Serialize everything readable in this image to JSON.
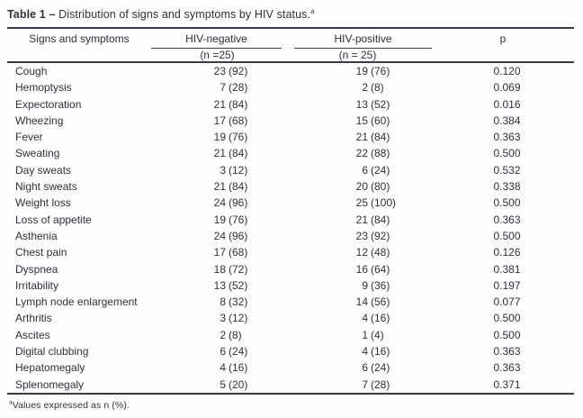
{
  "title": {
    "prefix": "Table 1",
    "separator": "–",
    "text": "Distribution of signs and symptoms by HIV status.",
    "footnote_mark": "a"
  },
  "table": {
    "header": {
      "signs": "Signs and symptoms",
      "negative": {
        "label": "HIV-negative",
        "sub": "(n =25)"
      },
      "positive": {
        "label": "HIV-positive",
        "sub": "(n = 25)"
      },
      "p": "p"
    },
    "rows": [
      {
        "label": "Cough",
        "neg_n": "23",
        "neg_pct": "(92)",
        "pos_n": "19",
        "pos_pct": "(76)",
        "p": "0.120"
      },
      {
        "label": "Hemoptysis",
        "neg_n": "7",
        "neg_pct": "(28)",
        "pos_n": "2",
        "pos_pct": "(8)",
        "p": "0.069"
      },
      {
        "label": "Expectoration",
        "neg_n": "21",
        "neg_pct": "(84)",
        "pos_n": "13",
        "pos_pct": "(52)",
        "p": "0.016"
      },
      {
        "label": "Wheezing",
        "neg_n": "17",
        "neg_pct": "(68)",
        "pos_n": "15",
        "pos_pct": "(60)",
        "p": "0.384"
      },
      {
        "label": "Fever",
        "neg_n": "19",
        "neg_pct": "(76)",
        "pos_n": "21",
        "pos_pct": "(84)",
        "p": "0.363"
      },
      {
        "label": "Sweating",
        "neg_n": "21",
        "neg_pct": "(84)",
        "pos_n": "22",
        "pos_pct": "(88)",
        "p": "0.500"
      },
      {
        "label": "Day sweats",
        "neg_n": "3",
        "neg_pct": "(12)",
        "pos_n": "6",
        "pos_pct": "(24)",
        "p": "0.532"
      },
      {
        "label": "Night sweats",
        "neg_n": "21",
        "neg_pct": "(84)",
        "pos_n": "20",
        "pos_pct": "(80)",
        "p": "0.338"
      },
      {
        "label": "Weight loss",
        "neg_n": "24",
        "neg_pct": "(96)",
        "pos_n": "25",
        "pos_pct": "(100)",
        "p": "0.500"
      },
      {
        "label": "Loss of appetite",
        "neg_n": "19",
        "neg_pct": "(76)",
        "pos_n": "21",
        "pos_pct": "(84)",
        "p": "0.363"
      },
      {
        "label": "Asthenia",
        "neg_n": "24",
        "neg_pct": "(96)",
        "pos_n": "23",
        "pos_pct": "(92)",
        "p": "0.500"
      },
      {
        "label": "Chest pain",
        "neg_n": "17",
        "neg_pct": "(68)",
        "pos_n": "12",
        "pos_pct": "(48)",
        "p": "0.126"
      },
      {
        "label": "Dyspnea",
        "neg_n": "18",
        "neg_pct": "(72)",
        "pos_n": "16",
        "pos_pct": "(64)",
        "p": "0.381"
      },
      {
        "label": "Irritability",
        "neg_n": "13",
        "neg_pct": "(52)",
        "pos_n": "9",
        "pos_pct": "(36)",
        "p": "0.197"
      },
      {
        "label": "Lymph node enlargement",
        "neg_n": "8",
        "neg_pct": "(32)",
        "pos_n": "14",
        "pos_pct": "(56)",
        "p": "0.077"
      },
      {
        "label": "Arthritis",
        "neg_n": "3",
        "neg_pct": "(12)",
        "pos_n": "4",
        "pos_pct": "(16)",
        "p": "0.500"
      },
      {
        "label": "Ascites",
        "neg_n": "2",
        "neg_pct": "(8)",
        "pos_n": "1",
        "pos_pct": "(4)",
        "p": "0.500"
      },
      {
        "label": "Digital clubbing",
        "neg_n": "6",
        "neg_pct": "(24)",
        "pos_n": "4",
        "pos_pct": "(16)",
        "p": "0.363"
      },
      {
        "label": "Hepatomegaly",
        "neg_n": "4",
        "neg_pct": "(16)",
        "pos_n": "6",
        "pos_pct": "(24)",
        "p": "0.363"
      },
      {
        "label": "Splenomegaly",
        "neg_n": "5",
        "neg_pct": "(20)",
        "pos_n": "7",
        "pos_pct": "(28)",
        "p": "0.371"
      }
    ]
  },
  "footnote": {
    "mark": "a",
    "text": "Values expressed as n (%)."
  }
}
